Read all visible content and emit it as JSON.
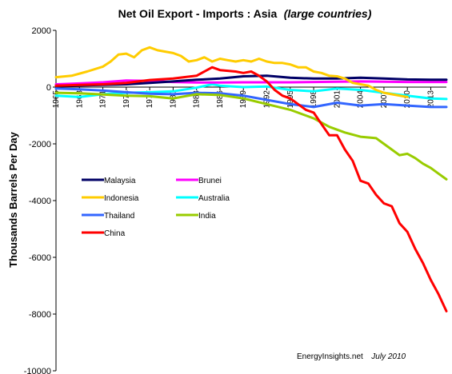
{
  "chart_data": {
    "type": "line",
    "title": "Net Oil Export - Imports : Asia",
    "title_italic": "(large countries)",
    "ylabel": "Thousands Barrels Per Day",
    "xlabel": "",
    "ylim": [
      -10000,
      2000
    ],
    "yticks": [
      "2000",
      "0",
      "-2000",
      "-4000",
      "-6000",
      "-8000",
      "-10000"
    ],
    "ytick_values": [
      2000,
      0,
      -2000,
      -4000,
      -6000,
      -8000,
      -10000
    ],
    "xlim": [
      1965,
      2015
    ],
    "xticks": [
      "1965",
      "1968",
      "1971",
      "1974",
      "1977",
      "1980",
      "1983",
      "1986",
      "1989",
      "1992",
      "1995",
      "1998",
      "2001",
      "2004",
      "2007",
      "2010",
      "2013"
    ],
    "xtick_values": [
      1965,
      1968,
      1971,
      1974,
      1977,
      1980,
      1983,
      1986,
      1989,
      1992,
      1995,
      1998,
      2001,
      2004,
      2007,
      2010,
      2013
    ],
    "grid": false,
    "legend_position": "left-middle",
    "credit": "EnergyInsights.net",
    "credit_date": "July 2010",
    "series": [
      {
        "name": "Malaysia",
        "color": "#000066",
        "x": [
          1965,
          1968,
          1971,
          1974,
          1977,
          1980,
          1983,
          1986,
          1989,
          1992,
          1995,
          1998,
          2001,
          2004,
          2007,
          2010,
          2013,
          2015
        ],
        "y": [
          50,
          60,
          80,
          100,
          150,
          200,
          260,
          300,
          380,
          400,
          330,
          300,
          300,
          330,
          300,
          270,
          260,
          260
        ]
      },
      {
        "name": "Brunei",
        "color": "#ff00ff",
        "x": [
          1965,
          1968,
          1971,
          1974,
          1977,
          1980,
          1983,
          1986,
          1989,
          1992,
          1995,
          1998,
          2001,
          2004,
          2007,
          2010,
          2013,
          2015
        ],
        "y": [
          100,
          130,
          170,
          230,
          220,
          180,
          160,
          160,
          170,
          170,
          170,
          180,
          190,
          200,
          190,
          180,
          180,
          180
        ]
      },
      {
        "name": "Indonesia",
        "color": "#ffcc00",
        "x": [
          1965,
          1967,
          1969,
          1971,
          1972,
          1973,
          1974,
          1975,
          1976,
          1977,
          1978,
          1979,
          1980,
          1981,
          1982,
          1983,
          1984,
          1985,
          1986,
          1987,
          1988,
          1989,
          1990,
          1991,
          1992,
          1993,
          1994,
          1995,
          1996,
          1997,
          1998,
          1999,
          2000,
          2001,
          2002,
          2003,
          2004,
          2005,
          2006,
          2007,
          2008,
          2009,
          2010
        ],
        "y": [
          350,
          400,
          550,
          720,
          900,
          1150,
          1180,
          1050,
          1300,
          1400,
          1300,
          1250,
          1200,
          1100,
          900,
          950,
          1050,
          900,
          1000,
          950,
          900,
          950,
          900,
          1000,
          900,
          850,
          850,
          800,
          700,
          700,
          550,
          500,
          400,
          380,
          300,
          150,
          100,
          50,
          -100,
          -200,
          -250,
          -300,
          -350
        ]
      },
      {
        "name": "Australia",
        "color": "#00ffff",
        "x": [
          1965,
          1968,
          1971,
          1974,
          1977,
          1980,
          1983,
          1985,
          1986,
          1989,
          1992,
          1995,
          1998,
          2001,
          2004,
          2007,
          2010,
          2013,
          2015
        ],
        "y": [
          -300,
          -350,
          -250,
          -200,
          -180,
          -150,
          -20,
          100,
          50,
          0,
          20,
          -100,
          -150,
          -50,
          -100,
          -200,
          -300,
          -400,
          -420
        ]
      },
      {
        "name": "Thailand",
        "color": "#3366ff",
        "x": [
          1965,
          1968,
          1971,
          1974,
          1977,
          1980,
          1983,
          1986,
          1989,
          1992,
          1995,
          1998,
          2001,
          2004,
          2007,
          2010,
          2013,
          2015
        ],
        "y": [
          -50,
          -80,
          -120,
          -180,
          -230,
          -250,
          -200,
          -220,
          -300,
          -450,
          -600,
          -700,
          -550,
          -650,
          -600,
          -650,
          -700,
          -700
        ]
      },
      {
        "name": "India",
        "color": "#99cc00",
        "x": [
          1965,
          1968,
          1971,
          1974,
          1977,
          1980,
          1983,
          1986,
          1989,
          1992,
          1995,
          1998,
          2000,
          2002,
          2004,
          2006,
          2007,
          2008,
          2009,
          2010,
          2011,
          2012,
          2013,
          2014,
          2015
        ],
        "y": [
          -200,
          -220,
          -260,
          -300,
          -320,
          -400,
          -250,
          -280,
          -400,
          -600,
          -800,
          -1100,
          -1400,
          -1600,
          -1750,
          -1800,
          -2000,
          -2200,
          -2400,
          -2350,
          -2500,
          -2700,
          -2850,
          -3050,
          -3250
        ]
      },
      {
        "name": "China",
        "color": "#ff0000",
        "x": [
          1965,
          1968,
          1971,
          1974,
          1977,
          1980,
          1983,
          1985,
          1986,
          1988,
          1989,
          1990,
          1991,
          1992,
          1993,
          1994,
          1995,
          1996,
          1997,
          1998,
          1999,
          2000,
          2001,
          2002,
          2003,
          2004,
          2005,
          2006,
          2007,
          2008,
          2009,
          2010,
          2011,
          2012,
          2013,
          2014,
          2015
        ],
        "y": [
          50,
          80,
          100,
          150,
          250,
          300,
          400,
          700,
          600,
          550,
          500,
          550,
          400,
          200,
          -100,
          -300,
          -400,
          -600,
          -800,
          -900,
          -1300,
          -1700,
          -1700,
          -2200,
          -2600,
          -3300,
          -3400,
          -3800,
          -4100,
          -4200,
          -4800,
          -5100,
          -5700,
          -6200,
          -6800,
          -7300,
          -7900
        ]
      }
    ]
  }
}
